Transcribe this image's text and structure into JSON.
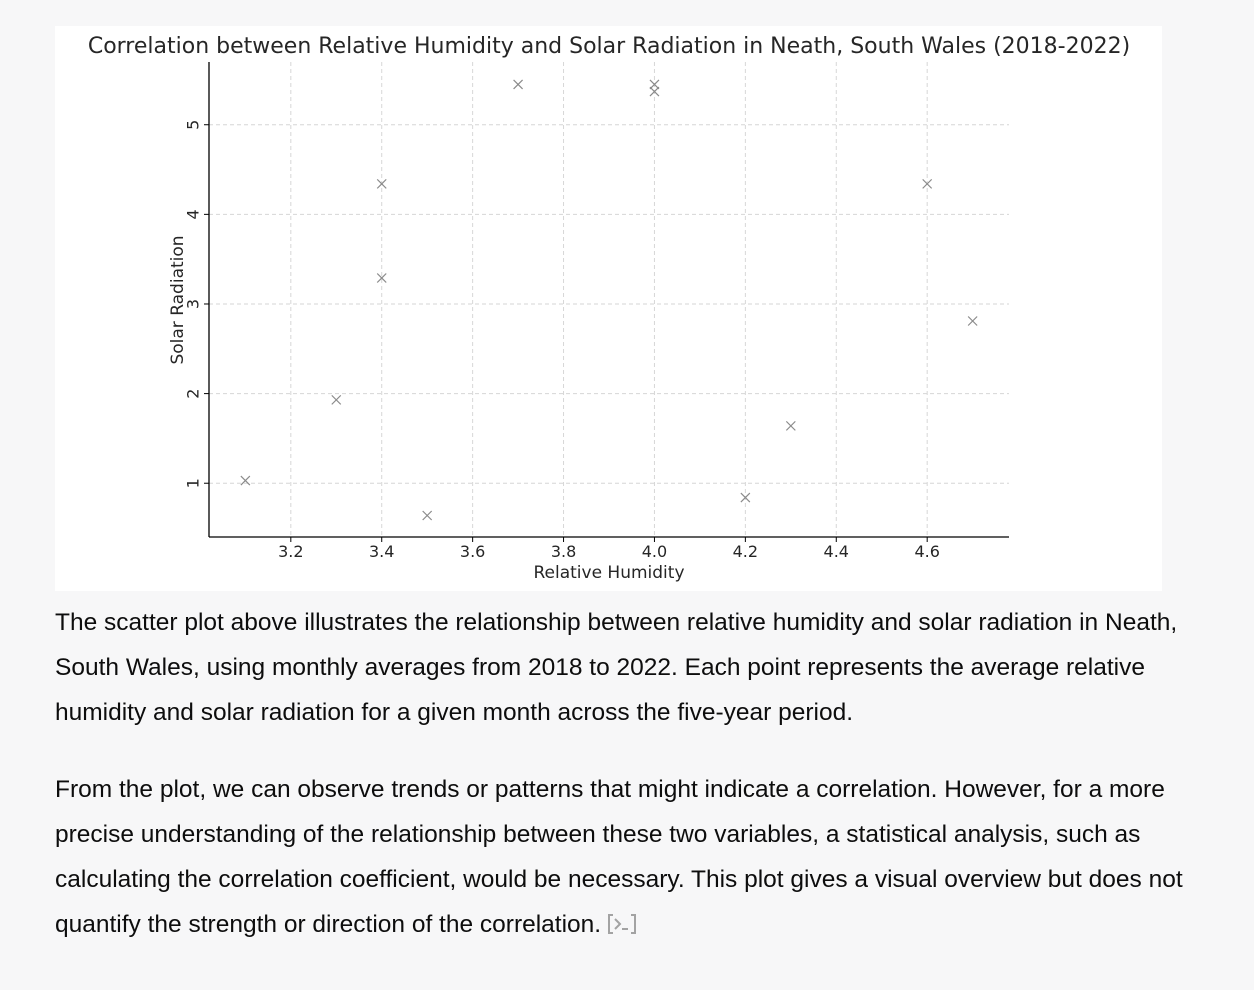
{
  "chart_data": {
    "type": "scatter",
    "title": "Correlation between Relative Humidity and Solar Radiation in Neath, South Wales (2018-2022)",
    "xlabel": "Relative Humidity",
    "ylabel": "Solar Radiation",
    "xlim": [
      3.02,
      4.78
    ],
    "ylim": [
      0.4,
      5.7
    ],
    "xticks": [
      3.2,
      3.4,
      3.6,
      3.8,
      4.0,
      4.2,
      4.4,
      4.6
    ],
    "xtick_labels": [
      "3.2",
      "3.4",
      "3.6",
      "3.8",
      "4.0",
      "4.2",
      "4.4",
      "4.6"
    ],
    "yticks": [
      1,
      2,
      3,
      4,
      5
    ],
    "ytick_labels": [
      "1",
      "2",
      "3",
      "4",
      "5"
    ],
    "grid": true,
    "marker": "x",
    "marker_color": "#8a8a8a",
    "points": [
      {
        "x": 3.1,
        "y": 1.03
      },
      {
        "x": 3.3,
        "y": 1.93
      },
      {
        "x": 3.4,
        "y": 4.34
      },
      {
        "x": 3.4,
        "y": 3.29
      },
      {
        "x": 3.5,
        "y": 0.64
      },
      {
        "x": 3.7,
        "y": 5.45
      },
      {
        "x": 4.0,
        "y": 5.45
      },
      {
        "x": 4.0,
        "y": 5.37
      },
      {
        "x": 4.2,
        "y": 0.84
      },
      {
        "x": 4.3,
        "y": 1.64
      },
      {
        "x": 4.6,
        "y": 4.34
      },
      {
        "x": 4.7,
        "y": 2.81
      }
    ]
  },
  "response": {
    "paragraph_1": "The scatter plot above illustrates the relationship between relative humidity and solar radiation in Neath, South Wales, using monthly averages from 2018 to 2022. Each point represents the average relative humidity and solar radiation for a given month across the five-year period.",
    "paragraph_2": "From the plot, we can observe trends or patterns that might indicate a correlation. However, for a more precise understanding of the relationship between these two variables, a statistical analysis, such as calculating the correlation coefficient, would be necessary. This plot gives a visual overview but does not quantify the strength or direction of the correlation.",
    "code_icon": "code-interpreter-icon",
    "icon_color": "#a3a3a3"
  }
}
